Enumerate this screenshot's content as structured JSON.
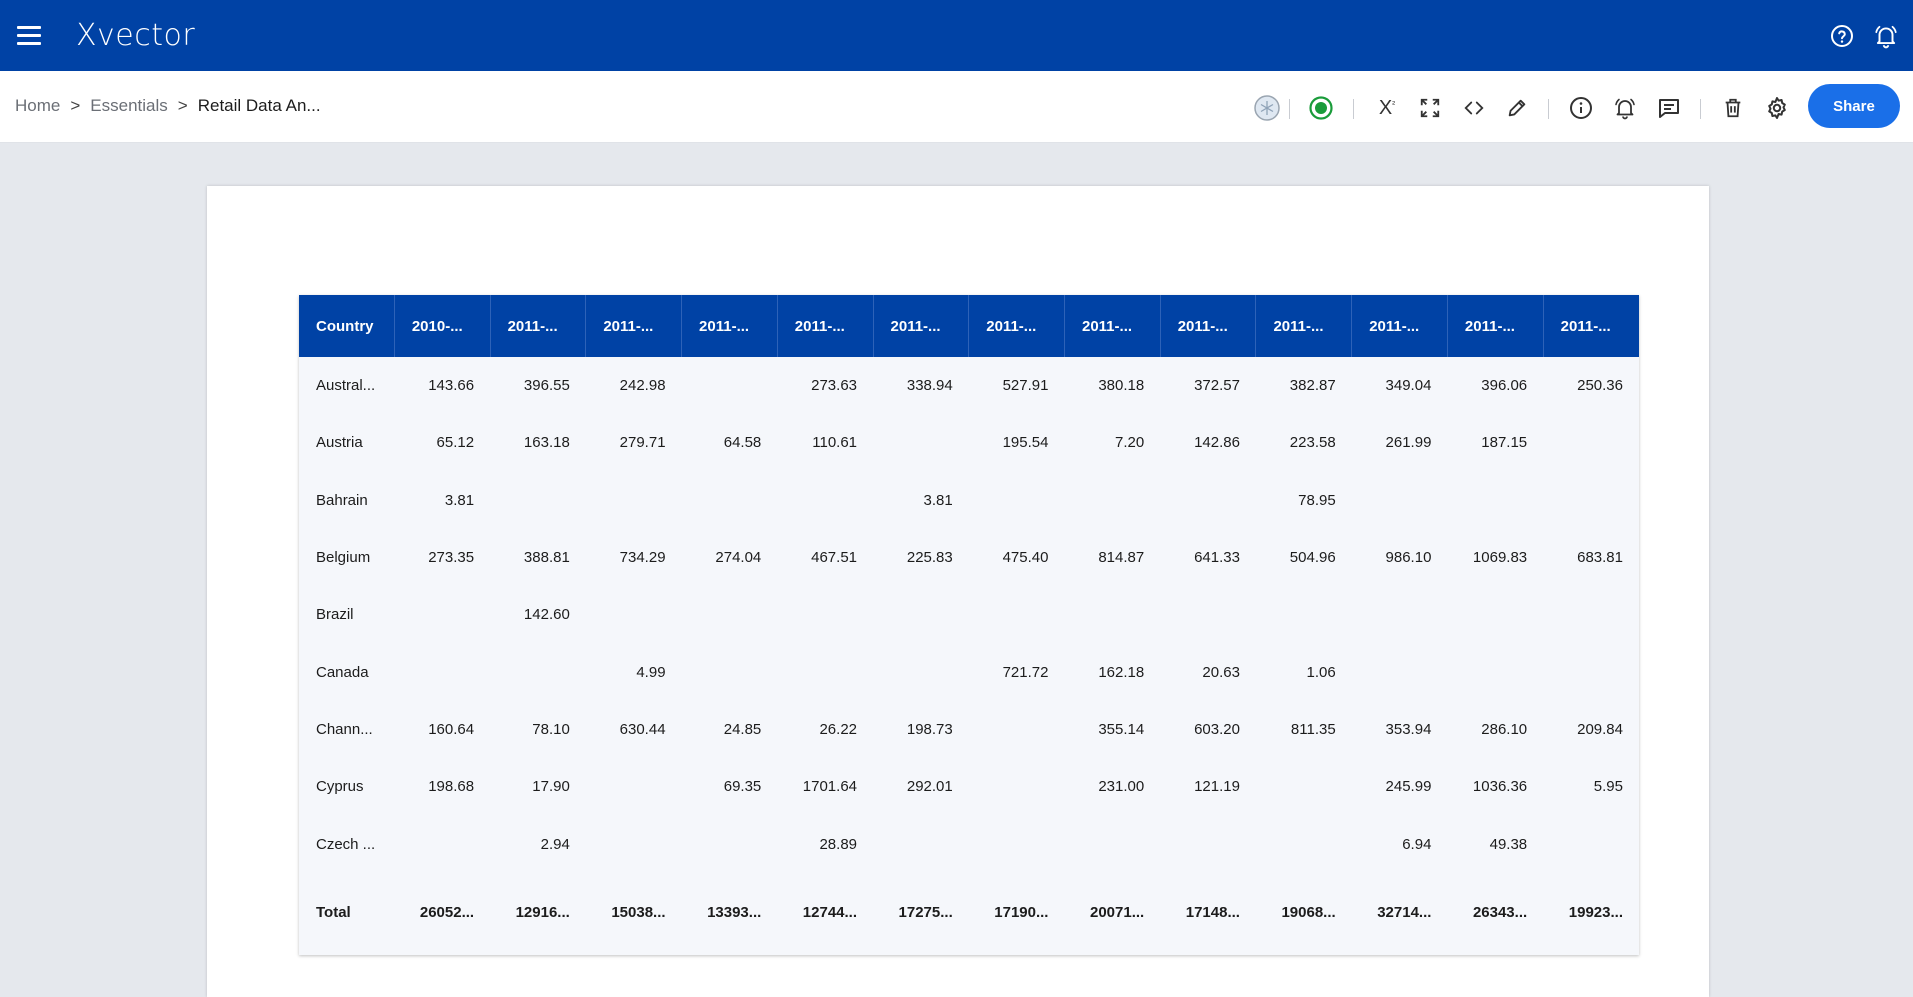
{
  "app": {
    "logo": "Xvector",
    "theme_color": "#0042a5"
  },
  "breadcrumb": {
    "items": [
      "Home",
      "Essentials"
    ],
    "separator": ">",
    "current": "Retail Data An..."
  },
  "toolbar": {
    "share_label": "Share",
    "superscript_glyph": "X",
    "superscript_mark": "²"
  },
  "table": {
    "headers": [
      "Country",
      "2010-...",
      "2011-...",
      "2011-...",
      "2011-...",
      "2011-...",
      "2011-...",
      "2011-...",
      "2011-...",
      "2011-...",
      "2011-...",
      "2011-...",
      "2011-...",
      "2011-..."
    ],
    "rows": [
      [
        "Austral...",
        "143.66",
        "396.55",
        "242.98",
        "",
        "273.63",
        "338.94",
        "527.91",
        "380.18",
        "372.57",
        "382.87",
        "349.04",
        "396.06",
        "250.36"
      ],
      [
        "Austria",
        "65.12",
        "163.18",
        "279.71",
        "64.58",
        "110.61",
        "",
        "195.54",
        "7.20",
        "142.86",
        "223.58",
        "261.99",
        "187.15",
        ""
      ],
      [
        "Bahrain",
        "3.81",
        "",
        "",
        "",
        "",
        "3.81",
        "",
        "",
        "",
        "78.95",
        "",
        "",
        ""
      ],
      [
        "Belgium",
        "273.35",
        "388.81",
        "734.29",
        "274.04",
        "467.51",
        "225.83",
        "475.40",
        "814.87",
        "641.33",
        "504.96",
        "986.10",
        "1069.83",
        "683.81"
      ],
      [
        "Brazil",
        "",
        "142.60",
        "",
        "",
        "",
        "",
        "",
        "",
        "",
        "",
        "",
        "",
        ""
      ],
      [
        "Canada",
        "",
        "",
        "4.99",
        "",
        "",
        "",
        "721.72",
        "162.18",
        "20.63",
        "1.06",
        "",
        "",
        ""
      ],
      [
        "Chann...",
        "160.64",
        "78.10",
        "630.44",
        "24.85",
        "26.22",
        "198.73",
        "",
        "355.14",
        "603.20",
        "811.35",
        "353.94",
        "286.10",
        "209.84"
      ],
      [
        "Cyprus",
        "198.68",
        "17.90",
        "",
        "69.35",
        "1701.64",
        "292.01",
        "",
        "231.00",
        "121.19",
        "",
        "245.99",
        "1036.36",
        "5.95"
      ],
      [
        "Czech ...",
        "",
        "2.94",
        "",
        "",
        "28.89",
        "",
        "",
        "",
        "",
        "",
        "6.94",
        "49.38",
        ""
      ]
    ],
    "total_row": [
      "Total",
      "26052...",
      "12916...",
      "15038...",
      "13393...",
      "12744...",
      "17275...",
      "17190...",
      "20071...",
      "17148...",
      "19068...",
      "32714...",
      "26343...",
      "19923..."
    ]
  }
}
